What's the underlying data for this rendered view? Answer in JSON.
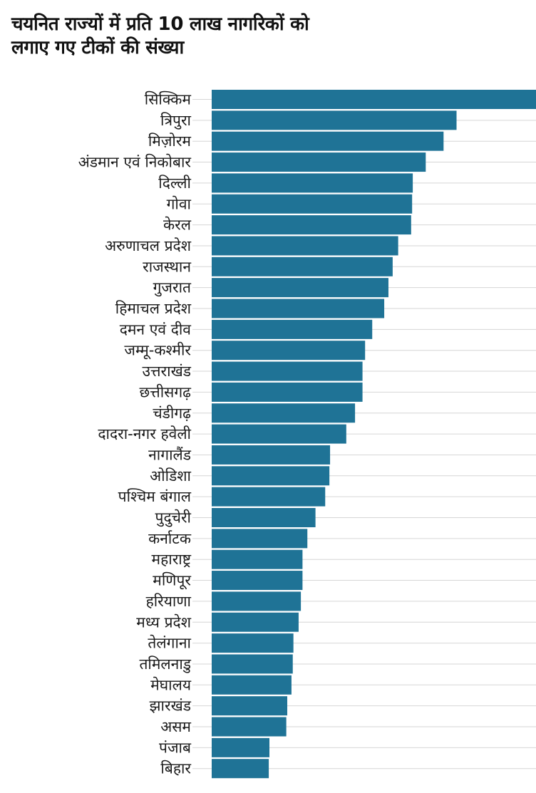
{
  "title_lines": [
    "चयनित राज्यों में प्रति 10 लाख नागरिकों को",
    "लगाए गए टीकों की संख्या"
  ],
  "colors": {
    "bar": "#1f7396",
    "grid": "#d6d6d6",
    "text": "#1a1a1a"
  },
  "chart_data": {
    "type": "bar",
    "orientation": "horizontal",
    "title": "चयनित राज्यों में प्रति 10 लाख नागरिकों को लगाए गए टीकों की संख्या",
    "xlabel": "",
    "ylabel": "",
    "grid": true,
    "categories": [
      "सिक्किम",
      "त्रिपुरा",
      "मिज़ोरम",
      "अंडमान एवं निकोबार",
      "दिल्ली",
      "गोवा",
      "केरल",
      "अरुणाचल प्रदेश",
      "राजस्थान",
      "गुजरात",
      "हिमाचल प्रदेश",
      "दमन एवं दीव",
      "जम्मू-कश्मीर",
      "उत्तराखंड",
      "छत्तीसगढ़",
      "चंडीगढ़",
      "दादरा-नगर हवेली",
      "नागालैंड",
      "ओडिशा",
      "पश्चिम बंगाल",
      "पुदुचेरी",
      "कर्नाटक",
      "महाराष्ट्र",
      "मणिपूर",
      "हरियाणा",
      "मध्य प्रदेश",
      "तेलंगाना",
      "तमिलनाडु",
      "मेघालय",
      "झारखंड",
      "असम",
      "पंजाब",
      "बिहार"
    ],
    "values": [
      100,
      75.5,
      71.5,
      66,
      62,
      61.8,
      61.5,
      57.5,
      55.8,
      54.5,
      53.2,
      49.5,
      47.3,
      46.5,
      46.5,
      44.2,
      41.5,
      36.5,
      36.3,
      35,
      32,
      29.5,
      28,
      28,
      27.5,
      26.8,
      25.2,
      25,
      24.6,
      23.3,
      23,
      17.8,
      17.6
    ]
  }
}
